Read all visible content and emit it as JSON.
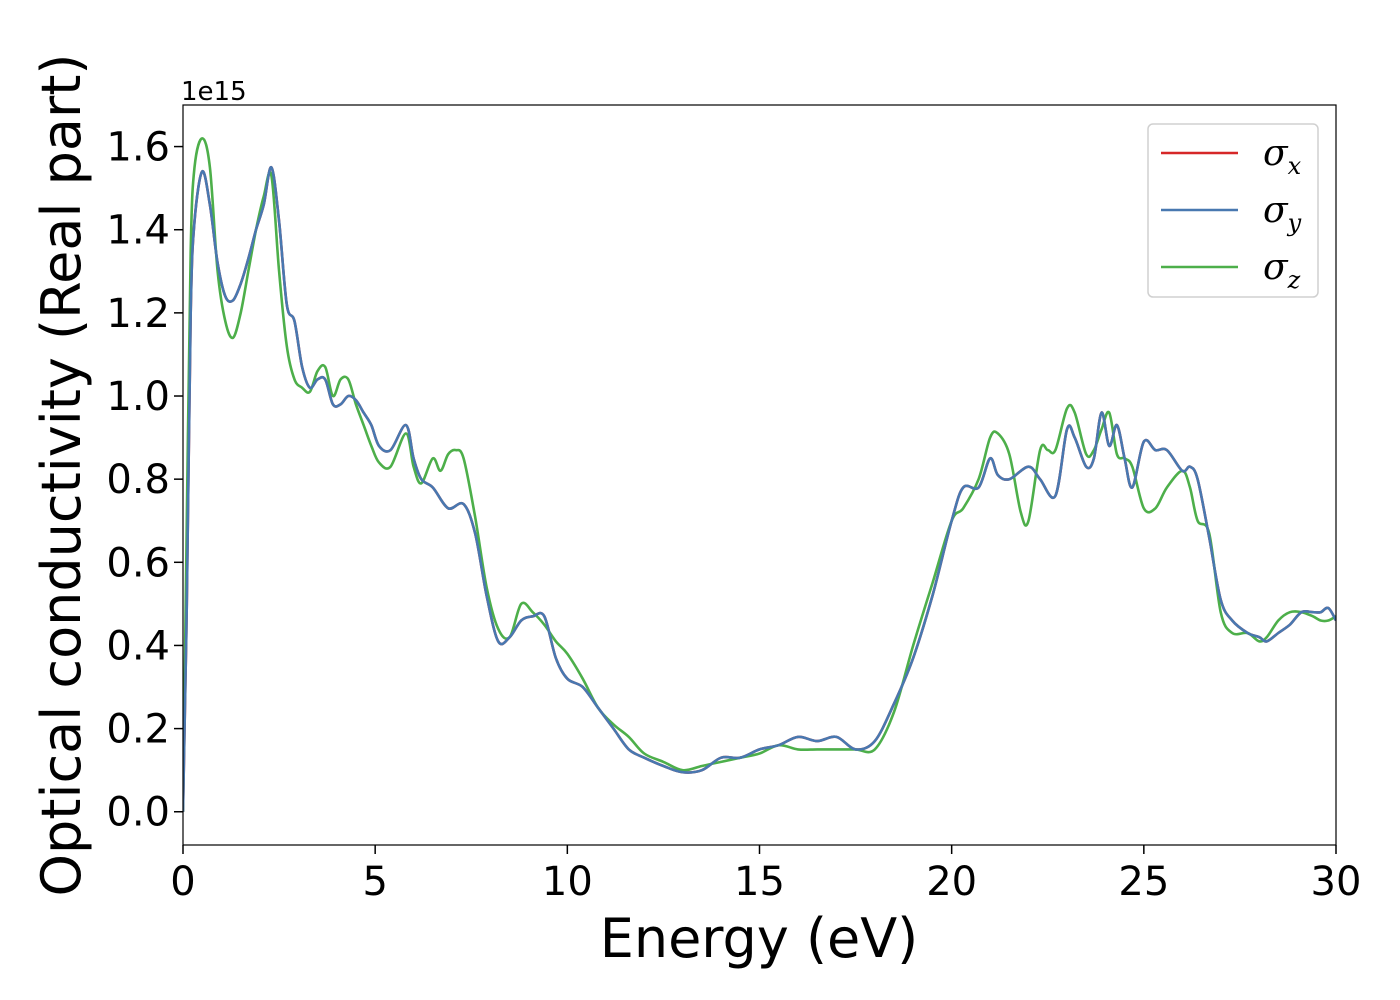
{
  "chart_data": {
    "type": "line",
    "title": "",
    "xlabel": "Energy (eV)",
    "ylabel": "Optical conductivity (Real part)",
    "y_offset_label": "1e15",
    "xlim": [
      0,
      30
    ],
    "ylim": [
      -0.08,
      1.7
    ],
    "xticks": [
      0,
      5,
      10,
      15,
      20,
      25,
      30
    ],
    "xtick_labels": [
      "0",
      "5",
      "10",
      "15",
      "20",
      "25",
      "30"
    ],
    "yticks": [
      0.0,
      0.2,
      0.4,
      0.6,
      0.8,
      1.0,
      1.2,
      1.4,
      1.6
    ],
    "ytick_labels": [
      "0.0",
      "0.2",
      "0.4",
      "0.6",
      "0.8",
      "1.0",
      "1.2",
      "1.4",
      "1.6"
    ],
    "grid": false,
    "legend_position": "top-right",
    "series": [
      {
        "name": "σ",
        "sub": "x",
        "color": "#d62728",
        "x": [
          0,
          0.1,
          0.2,
          0.3,
          0.5,
          0.7,
          0.9,
          1.1,
          1.3,
          1.5,
          1.7,
          1.9,
          2.1,
          2.3,
          2.5,
          2.7,
          2.9,
          3.1,
          3.3,
          3.5,
          3.7,
          3.9,
          4.1,
          4.3,
          4.5,
          4.7,
          4.9,
          5.1,
          5.4,
          5.8,
          6.0,
          6.2,
          6.5,
          6.9,
          7.3,
          7.6,
          7.9,
          8.2,
          8.5,
          8.8,
          9.1,
          9.4,
          9.7,
          10.0,
          10.4,
          10.8,
          11.2,
          11.6,
          12.0,
          12.5,
          13.0,
          13.5,
          14.0,
          14.5,
          15.0,
          15.5,
          16.0,
          16.5,
          17.0,
          17.5,
          18.0,
          18.5,
          19.0,
          19.5,
          20.0,
          20.3,
          20.7,
          21.0,
          21.2,
          21.5,
          22.0,
          22.3,
          22.7,
          23.0,
          23.2,
          23.5,
          23.7,
          23.9,
          24.1,
          24.3,
          24.5,
          24.7,
          25.0,
          25.3,
          25.6,
          26.0,
          26.2,
          26.4,
          26.7,
          27.0,
          27.3,
          27.7,
          28.0,
          28.2,
          28.5,
          28.8,
          29.1,
          29.4,
          29.6,
          29.8,
          30.0
        ],
        "y": [
          0.0,
          0.5,
          1.2,
          1.42,
          1.54,
          1.46,
          1.32,
          1.24,
          1.23,
          1.27,
          1.33,
          1.4,
          1.46,
          1.55,
          1.42,
          1.22,
          1.18,
          1.07,
          1.02,
          1.04,
          1.04,
          0.98,
          0.98,
          1.0,
          0.99,
          0.96,
          0.93,
          0.88,
          0.87,
          0.93,
          0.85,
          0.8,
          0.78,
          0.73,
          0.74,
          0.67,
          0.52,
          0.41,
          0.42,
          0.46,
          0.47,
          0.47,
          0.37,
          0.32,
          0.3,
          0.25,
          0.2,
          0.15,
          0.13,
          0.11,
          0.095,
          0.1,
          0.13,
          0.13,
          0.15,
          0.16,
          0.18,
          0.17,
          0.18,
          0.15,
          0.17,
          0.26,
          0.37,
          0.52,
          0.7,
          0.78,
          0.78,
          0.85,
          0.81,
          0.8,
          0.83,
          0.8,
          0.76,
          0.92,
          0.9,
          0.83,
          0.85,
          0.96,
          0.88,
          0.93,
          0.85,
          0.78,
          0.89,
          0.87,
          0.87,
          0.82,
          0.83,
          0.8,
          0.66,
          0.51,
          0.46,
          0.43,
          0.42,
          0.41,
          0.43,
          0.45,
          0.48,
          0.48,
          0.48,
          0.49,
          0.46
        ]
      },
      {
        "name": "σ",
        "sub": "y",
        "color": "#4878b0",
        "x": [
          0,
          0.1,
          0.2,
          0.3,
          0.5,
          0.7,
          0.9,
          1.1,
          1.3,
          1.5,
          1.7,
          1.9,
          2.1,
          2.3,
          2.5,
          2.7,
          2.9,
          3.1,
          3.3,
          3.5,
          3.7,
          3.9,
          4.1,
          4.3,
          4.5,
          4.7,
          4.9,
          5.1,
          5.4,
          5.8,
          6.0,
          6.2,
          6.5,
          6.9,
          7.3,
          7.6,
          7.9,
          8.2,
          8.5,
          8.8,
          9.1,
          9.4,
          9.7,
          10.0,
          10.4,
          10.8,
          11.2,
          11.6,
          12.0,
          12.5,
          13.0,
          13.5,
          14.0,
          14.5,
          15.0,
          15.5,
          16.0,
          16.5,
          17.0,
          17.5,
          18.0,
          18.5,
          19.0,
          19.5,
          20.0,
          20.3,
          20.7,
          21.0,
          21.2,
          21.5,
          22.0,
          22.3,
          22.7,
          23.0,
          23.2,
          23.5,
          23.7,
          23.9,
          24.1,
          24.3,
          24.5,
          24.7,
          25.0,
          25.3,
          25.6,
          26.0,
          26.2,
          26.4,
          26.7,
          27.0,
          27.3,
          27.7,
          28.0,
          28.2,
          28.5,
          28.8,
          29.1,
          29.4,
          29.6,
          29.8,
          30.0
        ],
        "y": [
          0.0,
          0.5,
          1.2,
          1.42,
          1.54,
          1.46,
          1.32,
          1.24,
          1.23,
          1.27,
          1.33,
          1.4,
          1.46,
          1.55,
          1.42,
          1.22,
          1.18,
          1.07,
          1.02,
          1.04,
          1.04,
          0.98,
          0.98,
          1.0,
          0.99,
          0.96,
          0.93,
          0.88,
          0.87,
          0.93,
          0.85,
          0.8,
          0.78,
          0.73,
          0.74,
          0.67,
          0.52,
          0.41,
          0.42,
          0.46,
          0.47,
          0.47,
          0.37,
          0.32,
          0.3,
          0.25,
          0.2,
          0.15,
          0.13,
          0.11,
          0.095,
          0.1,
          0.13,
          0.13,
          0.15,
          0.16,
          0.18,
          0.17,
          0.18,
          0.15,
          0.17,
          0.26,
          0.37,
          0.52,
          0.7,
          0.78,
          0.78,
          0.85,
          0.81,
          0.8,
          0.83,
          0.8,
          0.76,
          0.92,
          0.9,
          0.83,
          0.85,
          0.96,
          0.88,
          0.93,
          0.85,
          0.78,
          0.89,
          0.87,
          0.87,
          0.82,
          0.83,
          0.8,
          0.66,
          0.51,
          0.46,
          0.43,
          0.42,
          0.41,
          0.43,
          0.45,
          0.48,
          0.48,
          0.48,
          0.49,
          0.46
        ]
      },
      {
        "name": "σ",
        "sub": "z",
        "color": "#4daf4a",
        "x": [
          0,
          0.1,
          0.2,
          0.3,
          0.5,
          0.7,
          0.9,
          1.1,
          1.3,
          1.5,
          1.7,
          1.9,
          2.1,
          2.3,
          2.5,
          2.7,
          2.9,
          3.1,
          3.3,
          3.5,
          3.7,
          3.9,
          4.1,
          4.3,
          4.5,
          4.7,
          4.9,
          5.1,
          5.4,
          5.8,
          6.0,
          6.2,
          6.5,
          6.7,
          6.9,
          7.1,
          7.3,
          7.6,
          7.9,
          8.2,
          8.5,
          8.8,
          9.1,
          9.4,
          9.7,
          10.0,
          10.4,
          10.8,
          11.2,
          11.6,
          12.0,
          12.5,
          13.0,
          13.5,
          14.0,
          14.5,
          15.0,
          15.5,
          16.0,
          16.5,
          17.0,
          17.5,
          18.0,
          18.5,
          19.0,
          19.5,
          20.0,
          20.3,
          20.7,
          21.0,
          21.2,
          21.5,
          21.8,
          22.0,
          22.3,
          22.5,
          22.7,
          23.0,
          23.2,
          23.5,
          23.7,
          23.9,
          24.1,
          24.3,
          24.5,
          24.7,
          25.0,
          25.3,
          25.6,
          26.0,
          26.2,
          26.4,
          26.7,
          27.0,
          27.3,
          27.7,
          28.0,
          28.2,
          28.5,
          28.8,
          29.1,
          29.4,
          29.6,
          29.8,
          30.0
        ],
        "y": [
          0.0,
          0.7,
          1.35,
          1.55,
          1.62,
          1.55,
          1.3,
          1.18,
          1.14,
          1.2,
          1.3,
          1.4,
          1.48,
          1.53,
          1.3,
          1.12,
          1.04,
          1.02,
          1.01,
          1.06,
          1.07,
          1.0,
          1.04,
          1.04,
          0.98,
          0.93,
          0.88,
          0.84,
          0.83,
          0.91,
          0.83,
          0.79,
          0.85,
          0.82,
          0.86,
          0.87,
          0.85,
          0.71,
          0.54,
          0.44,
          0.42,
          0.5,
          0.48,
          0.45,
          0.41,
          0.38,
          0.32,
          0.25,
          0.21,
          0.18,
          0.14,
          0.12,
          0.1,
          0.11,
          0.12,
          0.13,
          0.14,
          0.16,
          0.15,
          0.15,
          0.15,
          0.15,
          0.15,
          0.24,
          0.4,
          0.55,
          0.7,
          0.73,
          0.8,
          0.9,
          0.91,
          0.86,
          0.72,
          0.7,
          0.87,
          0.87,
          0.87,
          0.97,
          0.96,
          0.86,
          0.87,
          0.92,
          0.96,
          0.86,
          0.85,
          0.83,
          0.73,
          0.73,
          0.78,
          0.82,
          0.78,
          0.7,
          0.67,
          0.48,
          0.43,
          0.43,
          0.41,
          0.42,
          0.46,
          0.48,
          0.48,
          0.47,
          0.46,
          0.46,
          0.47
        ]
      }
    ]
  }
}
